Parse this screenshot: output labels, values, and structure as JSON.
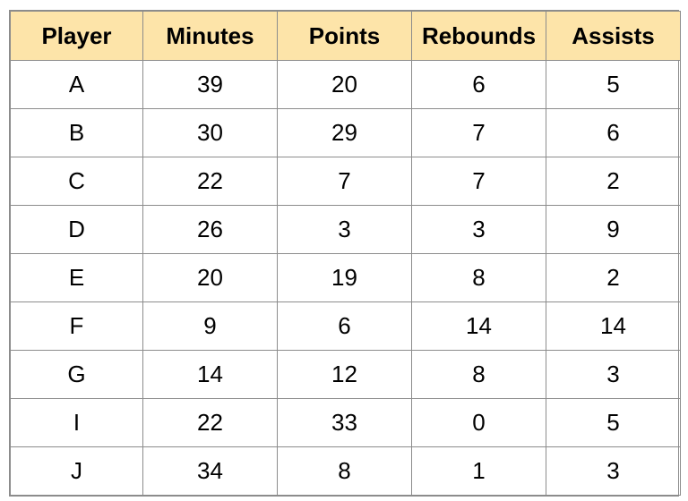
{
  "table": {
    "header_color": "#fde4a9",
    "columns": [
      "Player",
      "Minutes",
      "Points",
      "Rebounds",
      "Assists"
    ],
    "rows": [
      [
        "A",
        "39",
        "20",
        "6",
        "5"
      ],
      [
        "B",
        "30",
        "29",
        "7",
        "6"
      ],
      [
        "C",
        "22",
        "7",
        "7",
        "2"
      ],
      [
        "D",
        "26",
        "3",
        "3",
        "9"
      ],
      [
        "E",
        "20",
        "19",
        "8",
        "2"
      ],
      [
        "F",
        "9",
        "6",
        "14",
        "14"
      ],
      [
        "G",
        "14",
        "12",
        "8",
        "3"
      ],
      [
        "I",
        "22",
        "33",
        "0",
        "5"
      ],
      [
        "J",
        "34",
        "8",
        "1",
        "3"
      ]
    ]
  }
}
